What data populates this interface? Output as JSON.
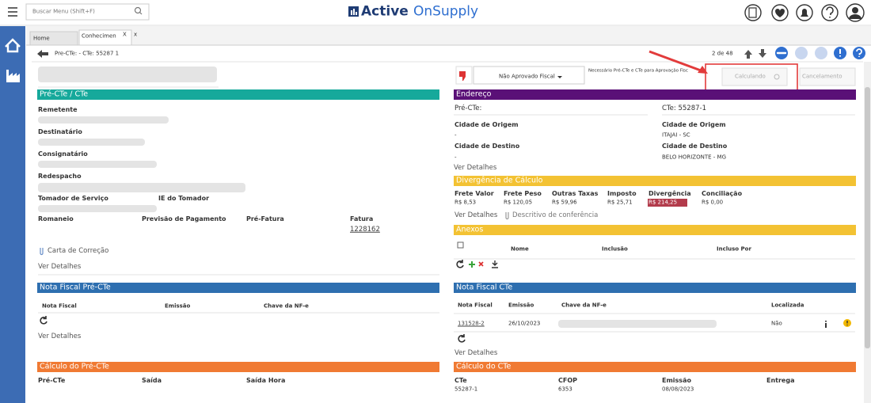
{
  "topbar": {
    "search_placeholder": "Buscar Menu (Shift+F)",
    "brand_bold": "Active",
    "brand_light": "OnSupply"
  },
  "tabs": {
    "items": [
      "Home",
      "Conhecimen"
    ],
    "active_close": "X",
    "close": "x"
  },
  "breadcrumb": "Pre-CTe: - CTe: 55287 1",
  "pager": "2 de 48",
  "left": {
    "pre_cte_section": {
      "title": "Pré-CTe / CTe",
      "fields": [
        "Remetente",
        "Destinatário",
        "Consignatário",
        "Redespacho",
        "Tomador de Serviço",
        "IE do Tomador"
      ],
      "row": [
        "Romaneio",
        "Previsão de Pagamento",
        "Pré-Fatura",
        "Fatura"
      ],
      "fatura_value": "1228162",
      "carta": "Carta de Correção",
      "details": "Ver Detalhes"
    },
    "nf_section": {
      "title": "Nota Fiscal Pré-CTe",
      "columns": [
        "Nota Fiscal",
        "Emissão",
        "Chave da NF-e"
      ],
      "details": "Ver Detalhes"
    },
    "calc_section": {
      "title": "Cálculo do Pré-CTe",
      "columns": [
        "Pré-CTe",
        "Saída",
        "Saída Hora"
      ]
    }
  },
  "right": {
    "status": "Não Aprovado Fiscal",
    "status_note": "Necessário Pré-CTe e CTe para Aprovação Fisc",
    "buttons": [
      "Calculando",
      "Cancelamento"
    ],
    "address": {
      "title": "Endereço",
      "pre_cte_label": "Pré-CTe:",
      "cte_label": "CTe: 55287-1",
      "origin_label": "Cidade de Origem",
      "destination_label": "Cidade de Destino",
      "pre_origin": "-",
      "pre_destination": "-",
      "cte_origin": "ITAJAI - SC",
      "cte_destination": "BELO HORIZONTE - MG",
      "details": "Ver Detalhes"
    },
    "divergence": {
      "title": "Divergência de Cálculo",
      "columns": [
        {
          "label": "Frete Valor",
          "value": "R$ 8,53"
        },
        {
          "label": "Frete Peso",
          "value": "R$ 120,05"
        },
        {
          "label": "Outras Taxas",
          "value": "R$ 59,96"
        },
        {
          "label": "Imposto",
          "value": "R$ 25,71"
        },
        {
          "label": "Divergência",
          "value": "R$ 214,25"
        },
        {
          "label": "Conciliação",
          "value": "R$ 0,00"
        }
      ],
      "details": "Ver Detalhes",
      "description": "Descritivo de conferência"
    },
    "attachments": {
      "title": "Anexos",
      "columns": [
        "Nome",
        "Inclusão",
        "Incluso Por"
      ]
    },
    "nf": {
      "title": "Nota Fiscal CTe",
      "columns": [
        "Nota Fiscal",
        "Emissão",
        "Chave da NF-e",
        "Localizada"
      ],
      "rows": [
        {
          "nota": "131528-2",
          "emissao": "26/10/2023",
          "localizada": "Não"
        }
      ],
      "details": "Ver Detalhes"
    },
    "calc": {
      "title": "Cálculo do CTe",
      "columns": [
        {
          "label": "CTe",
          "value": "55287-1"
        },
        {
          "label": "CFOP",
          "value": "6353"
        },
        {
          "label": "Emissão",
          "value": "08/08/2023"
        },
        {
          "label": "Entrega"
        }
      ]
    }
  }
}
